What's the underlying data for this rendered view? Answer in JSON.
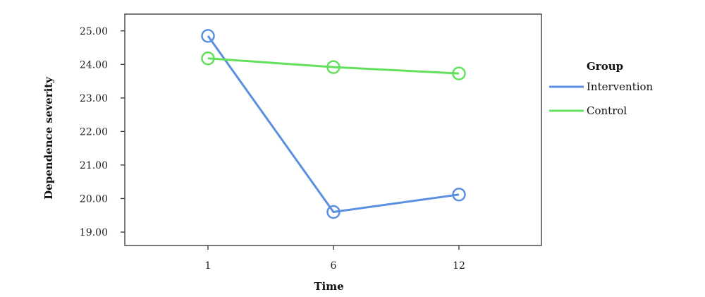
{
  "chart_data": {
    "type": "line",
    "xlabel": "Time",
    "ylabel": "Dependence severity",
    "categories": [
      "1",
      "6",
      "12"
    ],
    "y_ticks": [
      "19.00",
      "20.00",
      "21.00",
      "22.00",
      "23.00",
      "24.00",
      "25.00"
    ],
    "ylim": [
      18.6,
      25.5
    ],
    "grid": false,
    "legend": {
      "title": "Group",
      "placement": "right"
    },
    "series": [
      {
        "name": "Intervention",
        "color": "#5b8fe0",
        "values": [
          24.85,
          19.6,
          20.12
        ]
      },
      {
        "name": "Control",
        "color": "#63e05e",
        "values": [
          24.18,
          23.92,
          23.73
        ]
      }
    ]
  }
}
